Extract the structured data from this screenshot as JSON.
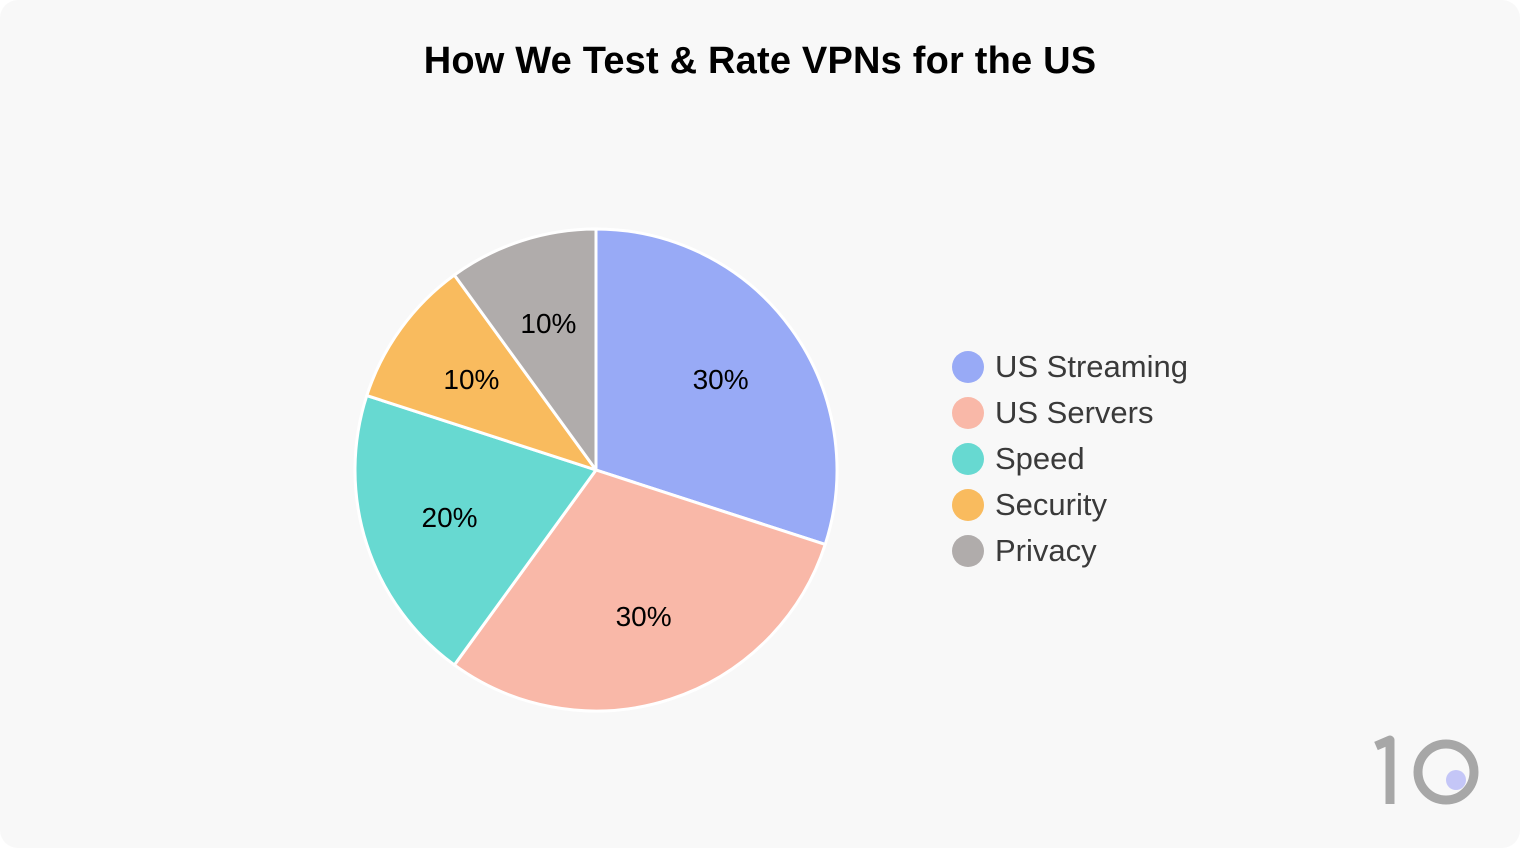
{
  "chart_data": {
    "type": "pie",
    "title": "How We Test & Rate VPNs for the US",
    "categories": [
      "US Streaming",
      "US Servers",
      "Speed",
      "Security",
      "Privacy"
    ],
    "values": [
      30,
      30,
      20,
      10,
      10
    ],
    "labels": [
      "30%",
      "30%",
      "20%",
      "10%",
      "10%"
    ],
    "colors": [
      "#98aaf6",
      "#f9b8a8",
      "#67d9d1",
      "#f9bb5e",
      "#b0acab"
    ],
    "legend": "right",
    "start": "top, clockwise"
  },
  "logo": {
    "text": "10",
    "colors": {
      "digits": "#a7a7a7",
      "dot": "#c4c6f7"
    }
  }
}
